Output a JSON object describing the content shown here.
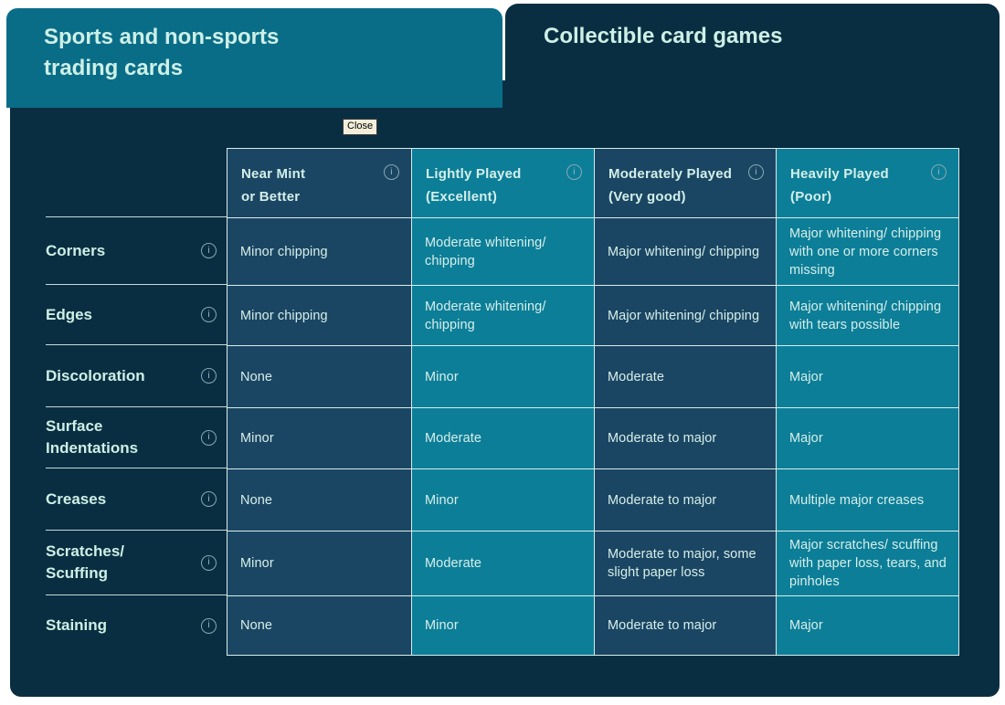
{
  "tabs": [
    {
      "label": "Sports and non-sports trading cards",
      "active": true
    },
    {
      "label": "Collectible card games",
      "active": false
    }
  ],
  "tooltip": {
    "close_label": "Close"
  },
  "icons": {
    "info": "i"
  },
  "colors": {
    "panel_navy": "#0a2e41",
    "active_tab_teal": "#0a6d88",
    "column_dark_blue": "#1b4663",
    "column_teal": "#0d7e98",
    "grid_line": "#d8edeb",
    "text_mint": "#cdf0e6",
    "tooltip_bg": "#f3eedb"
  },
  "table": {
    "columns": [
      {
        "title": "Near Mint or Better",
        "lines": [
          "Near Mint",
          "or Better"
        ]
      },
      {
        "title": "Lightly Played (Excellent)",
        "lines": [
          "Lightly Played",
          "(Excellent)"
        ]
      },
      {
        "title": "Moderately Played (Very good)",
        "lines": [
          "Moderately Played",
          "(Very good)"
        ]
      },
      {
        "title": "Heavily Played (Poor)",
        "lines": [
          "Heavily Played",
          "(Poor)"
        ]
      }
    ],
    "rows": [
      {
        "label": "Corners",
        "cells": [
          "Minor chipping",
          "Moderate whitening/ chipping",
          "Major whitening/ chipping",
          "Major whitening/ chipping with one or more corners missing"
        ]
      },
      {
        "label": "Edges",
        "cells": [
          "Minor chipping",
          "Moderate whitening/ chipping",
          "Major whitening/ chipping",
          "Major whitening/ chipping with tears possible"
        ]
      },
      {
        "label": "Discoloration",
        "cells": [
          "None",
          "Minor",
          "Moderate",
          "Major"
        ]
      },
      {
        "label": "Surface Indentations",
        "cells": [
          "Minor",
          "Moderate",
          "Moderate to major",
          "Major"
        ]
      },
      {
        "label": "Creases",
        "cells": [
          "None",
          "Minor",
          "Moderate to major",
          "Multiple major creases"
        ]
      },
      {
        "label": "Scratches/ Scuffing",
        "cells": [
          "Minor",
          "Moderate",
          "Moderate to major, some slight paper loss",
          "Major scratches/ scuffing with paper loss, tears, and pinholes"
        ]
      },
      {
        "label": "Staining",
        "cells": [
          "None",
          "Minor",
          "Moderate to major",
          "Major"
        ]
      }
    ]
  }
}
